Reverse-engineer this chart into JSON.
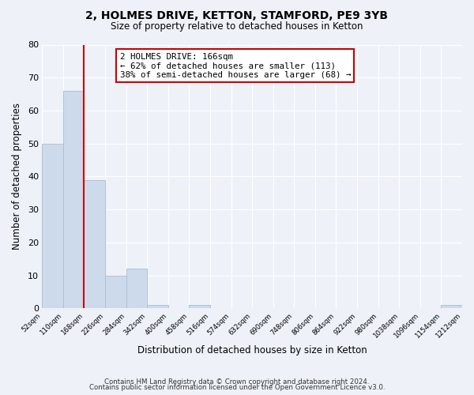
{
  "title": "2, HOLMES DRIVE, KETTON, STAMFORD, PE9 3YB",
  "subtitle": "Size of property relative to detached houses in Ketton",
  "xlabel": "Distribution of detached houses by size in Ketton",
  "ylabel": "Number of detached properties",
  "bin_edges": [
    52,
    110,
    168,
    226,
    284,
    342,
    400,
    458,
    516,
    574,
    632,
    690,
    748,
    806,
    864,
    922,
    980,
    1038,
    1096,
    1154,
    1212
  ],
  "bar_heights": [
    50,
    66,
    39,
    10,
    12,
    1,
    0,
    1,
    0,
    0,
    0,
    0,
    0,
    0,
    0,
    0,
    0,
    0,
    0,
    1
  ],
  "bar_color": "#cddaeb",
  "bar_edgecolor": "#a8bdd4",
  "property_line_x": 168,
  "property_line_color": "#cc0000",
  "annotation_text": "2 HOLMES DRIVE: 166sqm\n← 62% of detached houses are smaller (113)\n38% of semi-detached houses are larger (68) →",
  "annotation_box_edgecolor": "#cc0000",
  "annotation_box_facecolor": "#ffffff",
  "ylim": [
    0,
    80
  ],
  "yticks": [
    0,
    10,
    20,
    30,
    40,
    50,
    60,
    70,
    80
  ],
  "tick_labels": [
    "52sqm",
    "110sqm",
    "168sqm",
    "226sqm",
    "284sqm",
    "342sqm",
    "400sqm",
    "458sqm",
    "516sqm",
    "574sqm",
    "632sqm",
    "690sqm",
    "748sqm",
    "806sqm",
    "864sqm",
    "922sqm",
    "980sqm",
    "1038sqm",
    "1096sqm",
    "1154sqm",
    "1212sqm"
  ],
  "background_color": "#eef2f8",
  "plot_bg_color": "#eef2f8",
  "grid_color": "#ffffff",
  "footer_line1": "Contains HM Land Registry data © Crown copyright and database right 2024.",
  "footer_line2": "Contains public sector information licensed under the Open Government Licence v3.0."
}
